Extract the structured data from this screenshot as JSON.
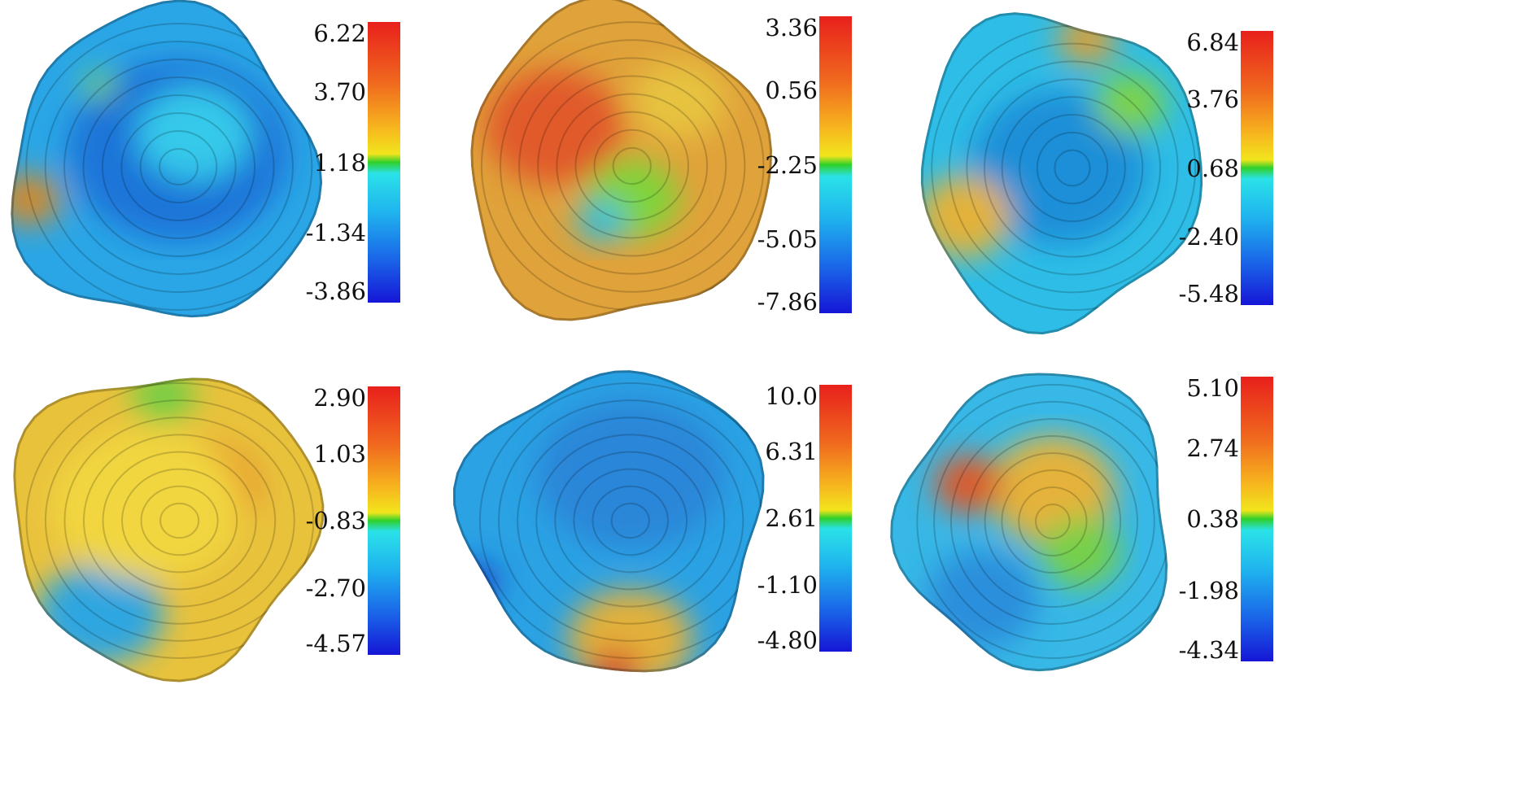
{
  "panels": [
    {
      "id": "p1",
      "scale": [
        "6.22",
        "3.70",
        "1.18",
        "-1.34",
        "-3.86"
      ],
      "palette": "blue"
    },
    {
      "id": "p2",
      "scale": [
        "3.36",
        "0.56",
        "-2.25",
        "-5.05",
        "-7.86"
      ],
      "palette": "orange"
    },
    {
      "id": "p3",
      "scale": [
        "6.84",
        "3.76",
        "0.68",
        "-2.40",
        "-5.48"
      ],
      "palette": "cyan"
    },
    {
      "id": "p4",
      "scale": [
        "2.90",
        "1.03",
        "-0.83",
        "-2.70",
        "-4.57"
      ],
      "palette": "yellow"
    },
    {
      "id": "p5",
      "scale": [
        "10.0",
        "6.31",
        "2.61",
        "-1.10",
        "-4.80"
      ],
      "palette": "blue2"
    },
    {
      "id": "p6",
      "scale": [
        "5.10",
        "2.74",
        "0.38",
        "-1.98",
        "-4.34"
      ],
      "palette": "mixed"
    }
  ]
}
